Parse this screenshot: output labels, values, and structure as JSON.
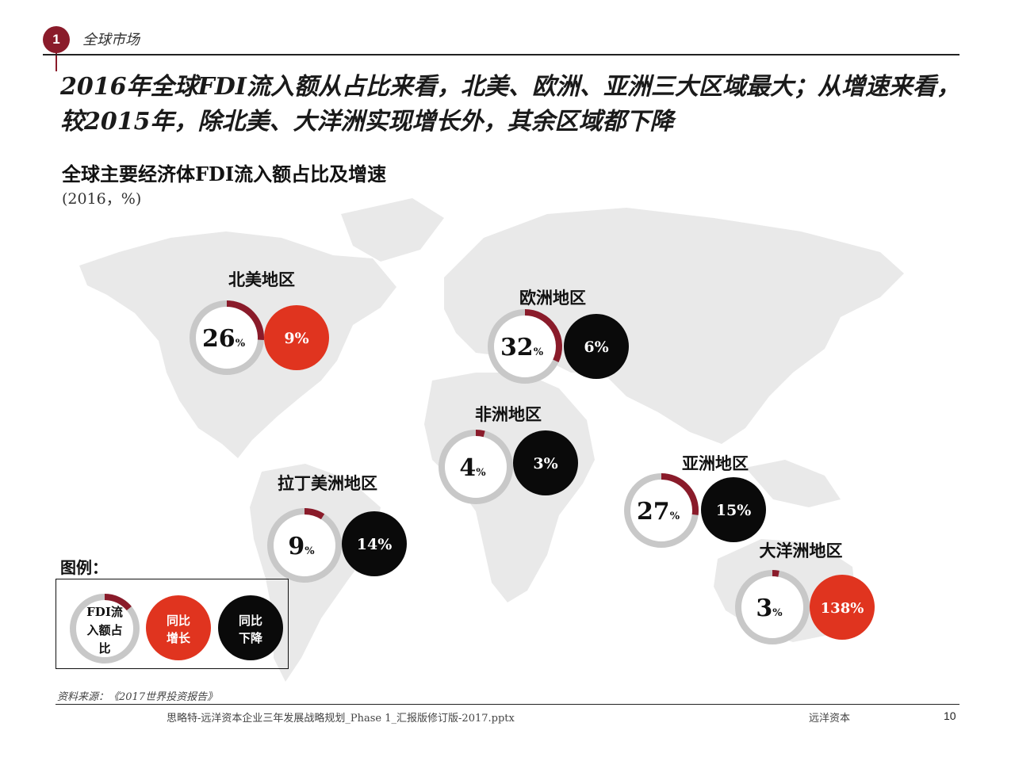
{
  "header": {
    "section_number": "1",
    "section_label": "全球市场",
    "headline": "2016年全球FDI流入额从占比来看，北美、欧洲、亚洲三大区域最大；从增速来看，较2015年，除北美、大洋洲实现增长外，其余区域都下降"
  },
  "chart_data": {
    "type": "donut-map",
    "title": "全球主要经济体FDI流入额占比及增速",
    "subtitle": "(2016，%)",
    "unit": "%",
    "regions": [
      {
        "name": "北美地区",
        "share": 26,
        "growth": 9,
        "growth_label": "9%",
        "growth_direction": "up"
      },
      {
        "name": "欧洲地区",
        "share": 32,
        "growth": 6,
        "growth_label": "6%",
        "growth_direction": "down"
      },
      {
        "name": "非洲地区",
        "share": 4,
        "growth": 3,
        "growth_label": "3%",
        "growth_direction": "down"
      },
      {
        "name": "拉丁美洲地区",
        "share": 9,
        "growth": 14,
        "growth_label": "14%",
        "growth_direction": "down"
      },
      {
        "name": "亚洲地区",
        "share": 27,
        "growth": 15,
        "growth_label": "15%",
        "growth_direction": "down"
      },
      {
        "name": "大洋洲地区",
        "share": 3,
        "growth": 138,
        "growth_label": "138%",
        "growth_direction": "up"
      }
    ],
    "legend": {
      "title": "图例：",
      "items": [
        {
          "label": "FDI流入额占比",
          "lines": [
            "FDI流",
            "入额占",
            "比"
          ],
          "kind": "share"
        },
        {
          "label": "同比增长",
          "lines": [
            "同比",
            "增长"
          ],
          "kind": "up"
        },
        {
          "label": "同比下降",
          "lines": [
            "同比",
            "下降"
          ],
          "kind": "down"
        }
      ]
    }
  },
  "colors": {
    "share_arc": "#8a1b2a",
    "ring_base": "#c8c8c8",
    "growth_up": "#e0341f",
    "growth_down": "#0a0a0a",
    "map_land": "#e9e9e9"
  },
  "footer": {
    "source": "资料来源：《2017世界投资报告》",
    "file_name": "思略特-远洋资本企业三年发展战略规划_Phase 1_汇报版修订版-2017.pptx",
    "company": "远洋资本",
    "page": "10"
  }
}
